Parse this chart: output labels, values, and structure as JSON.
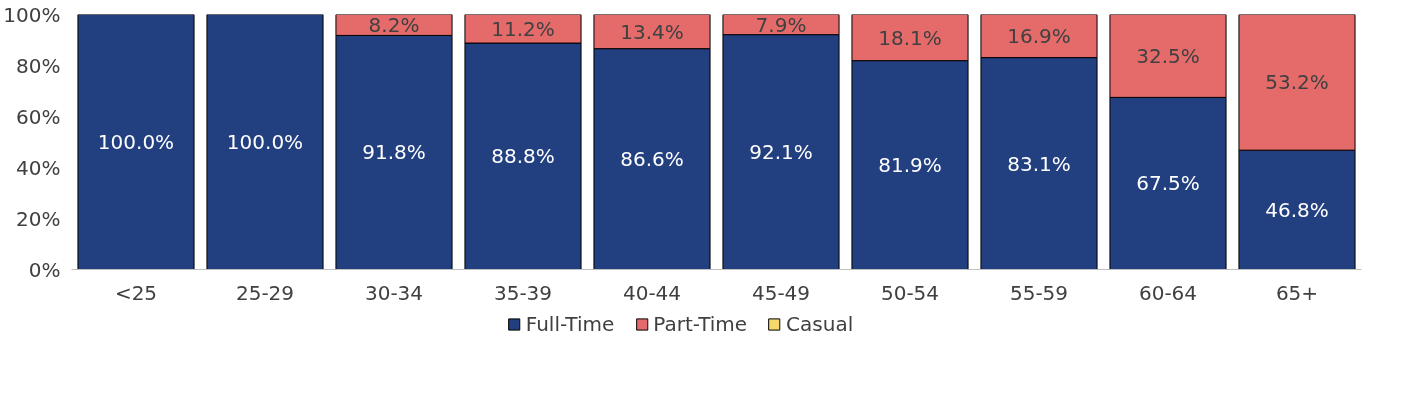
{
  "chart_data": {
    "type": "bar",
    "stacked": true,
    "categories": [
      "<25",
      "25-29",
      "30-34",
      "35-39",
      "40-44",
      "45-49",
      "50-54",
      "55-59",
      "60-64",
      "65+"
    ],
    "series": [
      {
        "name": "Full-Time",
        "color": "#223f80",
        "values": [
          100.0,
          100.0,
          91.8,
          88.8,
          86.6,
          92.1,
          81.9,
          83.1,
          67.5,
          46.8
        ],
        "value_labels": [
          "100.0%",
          "100.0%",
          "91.8%",
          "88.8%",
          "86.6%",
          "92.1%",
          "81.9%",
          "83.1%",
          "67.5%",
          "46.8%"
        ]
      },
      {
        "name": "Part-Time",
        "color": "#e56b6b",
        "values": [
          0,
          0,
          8.2,
          11.2,
          13.4,
          7.9,
          18.1,
          16.9,
          32.5,
          53.2
        ],
        "value_labels": [
          null,
          null,
          "8.2%",
          "11.2%",
          "13.4%",
          "7.9%",
          "18.1%",
          "16.9%",
          "32.5%",
          "53.2%"
        ]
      },
      {
        "name": "Casual",
        "color": "#f5d76e",
        "values": [
          0,
          0,
          0,
          0,
          0,
          0,
          0,
          0,
          0,
          0
        ],
        "value_labels": [
          null,
          null,
          null,
          null,
          null,
          null,
          null,
          null,
          null,
          null
        ]
      }
    ],
    "ylim": [
      0,
      100
    ],
    "yticks": [
      {
        "value": 0,
        "label": "0%"
      },
      {
        "value": 20,
        "label": "20%"
      },
      {
        "value": 40,
        "label": "40%"
      },
      {
        "value": 60,
        "label": "60%"
      },
      {
        "value": 80,
        "label": "80%"
      },
      {
        "value": 100,
        "label": "100%"
      }
    ],
    "grid": false,
    "legend": "bottom"
  }
}
